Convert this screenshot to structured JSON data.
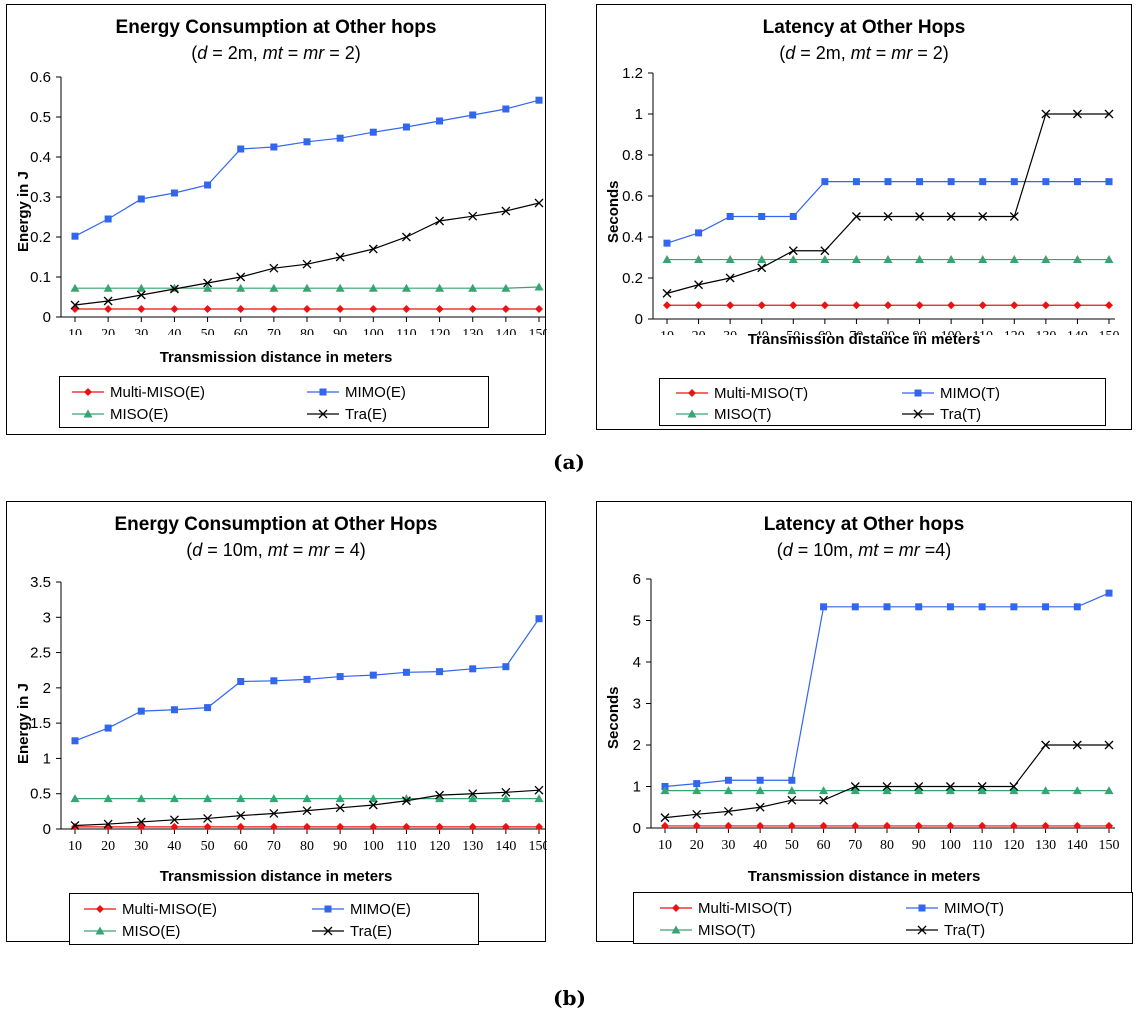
{
  "colors": {
    "multi_miso": "#ee1111",
    "mimo": "#3366ee",
    "miso": "#3aa374",
    "tra": "#000000"
  },
  "captions": {
    "a": "(a)",
    "b": "(b)"
  },
  "chart_data": [
    {
      "id": "a-left",
      "type": "line",
      "title": "Energy Consumption at Other hops",
      "subtitle": {
        "d": "d",
        "d_value": " = 2m, ",
        "mt": "mt",
        "eq": " = ",
        "mr": "mr",
        "rest": " = 2)"
      },
      "xlabel": "Transmission distance in meters",
      "ylabel": "Energy in J",
      "x": [
        10,
        20,
        30,
        40,
        50,
        60,
        70,
        80,
        90,
        100,
        110,
        120,
        130,
        140,
        150
      ],
      "yticks": [
        "0",
        "0.1",
        "0.2",
        "0.3",
        "0.4",
        "0.5",
        "0.6"
      ],
      "ylim": [
        0,
        0.6
      ],
      "series": [
        {
          "name": "Multi-MISO(E)",
          "marker": "diamond",
          "values": [
            0.02,
            0.02,
            0.02,
            0.02,
            0.02,
            0.02,
            0.02,
            0.02,
            0.02,
            0.02,
            0.02,
            0.02,
            0.02,
            0.02,
            0.02
          ]
        },
        {
          "name": "MIMO(E)",
          "marker": "square",
          "values": [
            0.202,
            0.245,
            0.295,
            0.31,
            0.33,
            0.42,
            0.425,
            0.438,
            0.447,
            0.462,
            0.475,
            0.49,
            0.505,
            0.52,
            0.542
          ]
        },
        {
          "name": "MISO(E)",
          "marker": "triangle",
          "values": [
            0.072,
            0.072,
            0.072,
            0.072,
            0.072,
            0.072,
            0.072,
            0.072,
            0.072,
            0.072,
            0.072,
            0.072,
            0.072,
            0.072,
            0.075
          ]
        },
        {
          "name": "Tra(E)",
          "marker": "x",
          "values": [
            0.03,
            0.04,
            0.055,
            0.07,
            0.085,
            0.1,
            0.122,
            0.132,
            0.15,
            0.17,
            0.2,
            0.24,
            0.252,
            0.265,
            0.285
          ]
        }
      ]
    },
    {
      "id": "a-right",
      "type": "line",
      "title": "Latency at Other Hops",
      "subtitle": {
        "d": "d",
        "d_value": " = 2m, ",
        "mt": "mt",
        "eq": " = ",
        "mr": "mr",
        "rest": " = 2)"
      },
      "xlabel": "Transmission distance in meters",
      "ylabel": "Seconds",
      "x": [
        10,
        20,
        30,
        40,
        50,
        60,
        70,
        80,
        90,
        100,
        110,
        120,
        130,
        140,
        150
      ],
      "yticks": [
        "0",
        "0.2",
        "0.4",
        "0.6",
        "0.8",
        "1",
        "1.2"
      ],
      "ylim": [
        0,
        1.2
      ],
      "series": [
        {
          "name": "Multi-MISO(T)",
          "marker": "diamond",
          "values": [
            0.067,
            0.067,
            0.067,
            0.067,
            0.067,
            0.067,
            0.067,
            0.067,
            0.067,
            0.067,
            0.067,
            0.067,
            0.067,
            0.067,
            0.067
          ]
        },
        {
          "name": "MIMO(T)",
          "marker": "square",
          "values": [
            0.37,
            0.42,
            0.5,
            0.5,
            0.5,
            0.67,
            0.67,
            0.67,
            0.67,
            0.67,
            0.67,
            0.67,
            0.67,
            0.67,
            0.67
          ]
        },
        {
          "name": "MISO(T)",
          "marker": "triangle",
          "values": [
            0.29,
            0.29,
            0.29,
            0.29,
            0.29,
            0.29,
            0.29,
            0.29,
            0.29,
            0.29,
            0.29,
            0.29,
            0.29,
            0.29,
            0.29
          ]
        },
        {
          "name": "Tra(T)",
          "marker": "x",
          "values": [
            0.125,
            0.167,
            0.2,
            0.25,
            0.333,
            0.333,
            0.5,
            0.5,
            0.5,
            0.5,
            0.5,
            0.5,
            1.0,
            1.0,
            1.0
          ]
        }
      ]
    },
    {
      "id": "b-left",
      "type": "line",
      "title": "Energy Consumption at Other Hops",
      "subtitle": {
        "d": "d",
        "d_value": " = 10m, ",
        "mt": "mt",
        "eq": " = ",
        "mr": "mr",
        "rest": " = 4)"
      },
      "xlabel": "Transmission distance in meters",
      "ylabel": "Energy in J",
      "x": [
        10,
        20,
        30,
        40,
        50,
        60,
        70,
        80,
        90,
        100,
        110,
        120,
        130,
        140,
        150
      ],
      "yticks": [
        "0",
        "0.5",
        "1",
        "1.5",
        "2",
        "2.5",
        "3",
        "3.5"
      ],
      "ylim": [
        0,
        3.5
      ],
      "series": [
        {
          "name": "Multi-MISO(E)",
          "marker": "diamond",
          "values": [
            0.03,
            0.03,
            0.03,
            0.03,
            0.03,
            0.03,
            0.03,
            0.03,
            0.03,
            0.03,
            0.03,
            0.03,
            0.03,
            0.03,
            0.03
          ]
        },
        {
          "name": "MIMO(E)",
          "marker": "square",
          "values": [
            1.25,
            1.43,
            1.67,
            1.69,
            1.72,
            2.09,
            2.1,
            2.12,
            2.16,
            2.18,
            2.22,
            2.23,
            2.27,
            2.3,
            2.98
          ]
        },
        {
          "name": "MISO(E)",
          "marker": "triangle",
          "values": [
            0.43,
            0.43,
            0.43,
            0.43,
            0.43,
            0.43,
            0.43,
            0.43,
            0.43,
            0.43,
            0.43,
            0.43,
            0.43,
            0.43,
            0.43
          ]
        },
        {
          "name": "Tra(E)",
          "marker": "x",
          "values": [
            0.05,
            0.07,
            0.1,
            0.13,
            0.15,
            0.19,
            0.22,
            0.26,
            0.3,
            0.34,
            0.4,
            0.48,
            0.5,
            0.52,
            0.55
          ]
        }
      ]
    },
    {
      "id": "b-right",
      "type": "line",
      "title": "Latency at Other hops",
      "subtitle": {
        "d": "d",
        "d_value": " = 10m, ",
        "mt": "mt",
        "eq": " = ",
        "mr": "mr",
        "rest": " =4)"
      },
      "xlabel": "Transmission distance in meters",
      "ylabel": "Seconds",
      "x": [
        10,
        20,
        30,
        40,
        50,
        60,
        70,
        80,
        90,
        100,
        110,
        120,
        130,
        140,
        150
      ],
      "yticks": [
        "0",
        "1",
        "2",
        "3",
        "4",
        "5",
        "6"
      ],
      "ylim": [
        0,
        6
      ],
      "series": [
        {
          "name": "Multi-MISO(T)",
          "marker": "diamond",
          "values": [
            0.05,
            0.05,
            0.05,
            0.05,
            0.05,
            0.05,
            0.05,
            0.05,
            0.05,
            0.05,
            0.05,
            0.05,
            0.05,
            0.05,
            0.05
          ]
        },
        {
          "name": "MIMO(T)",
          "marker": "square",
          "values": [
            1.0,
            1.07,
            1.15,
            1.15,
            1.15,
            5.33,
            5.33,
            5.33,
            5.33,
            5.33,
            5.33,
            5.33,
            5.33,
            5.33,
            5.66
          ]
        },
        {
          "name": "MISO(T)",
          "marker": "triangle",
          "values": [
            0.9,
            0.9,
            0.9,
            0.9,
            0.9,
            0.9,
            0.9,
            0.9,
            0.9,
            0.9,
            0.9,
            0.9,
            0.9,
            0.9,
            0.9
          ]
        },
        {
          "name": "Tra(T)",
          "marker": "x",
          "values": [
            0.25,
            0.33,
            0.4,
            0.5,
            0.67,
            0.67,
            1.0,
            1.0,
            1.0,
            1.0,
            1.0,
            1.0,
            2.0,
            2.0,
            2.0
          ]
        }
      ]
    }
  ]
}
